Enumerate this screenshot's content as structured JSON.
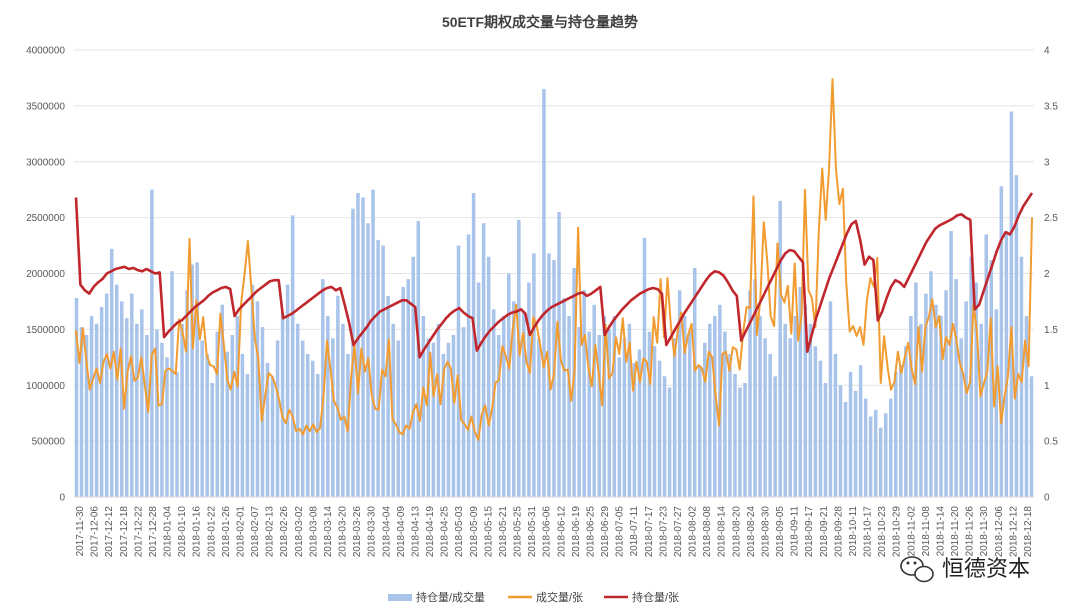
{
  "chart_data": {
    "type": "bar+line",
    "title": "50ETF期权成交量与持仓量趋势",
    "y_left": {
      "min": 0,
      "max": 4000000,
      "ticks": [
        "0",
        "500000",
        "1000000",
        "1500000",
        "2000000",
        "2500000",
        "3000000",
        "3500000",
        "4000000"
      ]
    },
    "y_right": {
      "min": 0,
      "max": 4,
      "ticks": [
        "0",
        "0.5",
        "1",
        "1.5",
        "2",
        "2.5",
        "3",
        "3.5",
        "4"
      ]
    },
    "x_range": [
      "2017-11-30",
      "2018-12-28"
    ],
    "x_tick_labels": [
      "2017-11-30",
      "2017-12-06",
      "2017-12-12",
      "2017-12-18",
      "2017-12-22",
      "2017-12-28",
      "2018-01-04",
      "2018-01-10",
      "2018-01-16",
      "2018-01-22",
      "2018-01-26",
      "2018-02-01",
      "2018-02-07",
      "2018-02-13",
      "2018-02-26",
      "2018-03-02",
      "2018-03-08",
      "2018-03-14",
      "2018-03-20",
      "2018-03-26",
      "2018-03-30",
      "2018-04-04",
      "2018-04-09",
      "2018-04-13",
      "2018-04-19",
      "2018-04-25",
      "2018-05-03",
      "2018-05-09",
      "2018-05-15",
      "2018-05-21",
      "2018-05-25",
      "2018-05-31",
      "2018-06-06",
      "2018-06-12",
      "2018-06-19",
      "2018-06-25",
      "2018-06-29",
      "2018-07-05",
      "2018-07-11",
      "2018-07-17",
      "2018-07-23",
      "2018-07-27",
      "2018-08-02",
      "2018-08-08",
      "2018-08-14",
      "2018-08-20",
      "2018-08-24",
      "2018-08-30",
      "2018-09-05",
      "2018-09-11",
      "2018-09-17",
      "2018-09-21",
      "2018-09-28",
      "2018-10-11",
      "2018-10-17",
      "2018-10-23",
      "2018-10-29",
      "2018-11-02",
      "2018-11-08",
      "2018-11-14",
      "2018-11-20",
      "2018-11-26",
      "2018-11-30",
      "2018-12-06",
      "2018-12-12",
      "2018-12-18"
    ],
    "series": [
      {
        "name": "持仓量/成交量",
        "type": "bar",
        "axis": "right",
        "color": "#a9c4eb",
        "values": [
          1.78,
          1.52,
          1.45,
          1.62,
          1.55,
          1.7,
          1.82,
          2.22,
          1.9,
          1.75,
          1.6,
          1.82,
          1.55,
          1.68,
          1.45,
          2.75,
          1.5,
          1.38,
          1.25,
          2.02,
          1.12,
          1.55,
          1.85,
          2.08,
          2.1,
          1.4,
          1.28,
          1.02,
          1.48,
          1.72,
          1.3,
          1.45,
          1.62,
          1.28,
          1.1,
          1.9,
          1.75,
          1.52,
          1.2,
          1.08,
          1.4,
          1.65,
          1.9,
          2.52,
          1.55,
          1.4,
          1.28,
          1.22,
          1.1,
          1.95,
          1.62,
          1.42,
          1.8,
          1.55,
          1.28,
          2.58,
          2.72,
          2.68,
          2.45,
          2.75,
          2.3,
          2.25,
          1.8,
          1.55,
          1.4,
          1.88,
          1.95,
          2.15,
          2.47,
          1.62,
          1.42,
          1.38,
          1.55,
          1.28,
          1.38,
          1.45,
          2.25,
          1.52,
          2.35,
          2.72,
          1.92,
          2.45,
          2.15,
          1.68,
          1.45,
          1.62,
          2.0,
          1.75,
          2.48,
          1.65,
          1.92,
          2.18,
          1.42,
          3.65,
          2.18,
          2.12,
          2.55,
          1.78,
          1.62,
          2.05,
          1.52,
          1.85,
          1.48,
          1.72,
          1.45,
          1.62,
          1.5,
          1.62,
          1.25,
          1.42,
          1.55,
          1.2,
          1.32,
          2.32,
          1.48,
          1.35,
          1.22,
          1.08,
          0.98,
          1.42,
          1.85,
          1.62,
          1.48,
          2.05,
          1.18,
          1.38,
          1.55,
          1.62,
          1.72,
          1.48,
          1.28,
          1.1,
          0.98,
          1.02,
          1.85,
          1.95,
          1.62,
          1.42,
          1.28,
          1.08,
          2.65,
          1.55,
          1.42,
          1.62,
          1.88,
          1.72,
          1.55,
          1.35,
          1.22,
          1.02,
          1.75,
          1.28,
          1.0,
          0.85,
          1.12,
          0.95,
          1.18,
          0.88,
          0.72,
          0.78,
          0.62,
          0.75,
          0.88,
          1.12,
          1.18,
          1.35,
          1.62,
          1.92,
          1.55,
          1.82,
          2.02,
          1.72,
          1.62,
          1.85,
          2.38,
          1.95,
          1.42,
          1.75,
          2.15,
          1.92,
          1.55,
          2.35,
          2.12,
          1.68,
          2.78,
          2.38,
          3.45,
          2.88,
          2.15,
          1.62,
          1.08
        ]
      },
      {
        "name": "成交量/张",
        "type": "line",
        "axis": "left",
        "color": "#f29b30",
        "values": [
          1490000,
          1200000,
          1510000,
          1220000,
          960000,
          1060000,
          1150000,
          1020000,
          1210000,
          1280000,
          1150000,
          1300000,
          1050000,
          1330000,
          790000,
          1120000,
          1260000,
          1040000,
          1070000,
          1250000,
          1000000,
          760000,
          1270000,
          1330000,
          820000,
          830000,
          1130000,
          1150000,
          1130000,
          1100000,
          1590000,
          1470000,
          1300000,
          2310000,
          1330000,
          1760000,
          1410000,
          1610000,
          1270000,
          1180000,
          1170000,
          1100000,
          1640000,
          1360000,
          1050000,
          960000,
          1120000,
          990000,
          1730000,
          1990000,
          2290000,
          1860000,
          1420000,
          1240000,
          680000,
          900000,
          1110000,
          1080000,
          1000000,
          880000,
          720000,
          660000,
          780000,
          720000,
          590000,
          610000,
          560000,
          640000,
          590000,
          650000,
          580000,
          620000,
          910000,
          1400000,
          1140000,
          860000,
          800000,
          690000,
          720000,
          590000,
          1070000,
          1360000,
          930000,
          1330000,
          1120000,
          1240000,
          910000,
          790000,
          780000,
          1140000,
          1080000,
          1410000,
          700000,
          650000,
          580000,
          560000,
          640000,
          610000,
          760000,
          830000,
          680000,
          980000,
          820000,
          1290000,
          900000,
          1100000,
          830000,
          1140000,
          1210000,
          1150000,
          840000,
          1090000,
          690000,
          650000,
          600000,
          720000,
          580000,
          510000,
          740000,
          820000,
          640000,
          790000,
          1020000,
          1050000,
          1350000,
          1260000,
          1150000,
          1500000,
          1720000,
          1270000,
          1470000,
          1210000,
          1110000,
          1610000,
          1530000,
          1360000,
          1160000,
          1300000,
          960000,
          1100000,
          1570000,
          1220000,
          1130000,
          1140000,
          860000,
          1130000,
          2410000,
          1360000,
          1450000,
          1160000,
          990000,
          1360000,
          1110000,
          820000,
          1540000,
          1060000,
          1110000,
          1430000,
          1280000,
          1600000,
          1210000,
          1380000,
          950000,
          1210000,
          1030000,
          1240000,
          1210000,
          1010000,
          1610000,
          1380000,
          1950000,
          1430000,
          1960000,
          1530000,
          1260000,
          1490000,
          1650000,
          1290000,
          1450000,
          1550000,
          1130000,
          1180000,
          1150000,
          1030000,
          1300000,
          1250000,
          910000,
          640000,
          1280000,
          1300000,
          1130000,
          1340000,
          1320000,
          1140000,
          1470000,
          1700000,
          1690000,
          2690000,
          1450000,
          1770000,
          2460000,
          2120000,
          1620000,
          1530000,
          2270000,
          1810000,
          1740000,
          1890000,
          1460000,
          2090000,
          1400000,
          1630000,
          2750000,
          1850000,
          1780000,
          1520000,
          2380000,
          2940000,
          2480000,
          2950000,
          3740000,
          2930000,
          2620000,
          2760000,
          1910000,
          1480000,
          1530000,
          1440000,
          1520000,
          1360000,
          1760000,
          1960000,
          1880000,
          2140000,
          1020000,
          1440000,
          1160000,
          960000,
          1030000,
          1300000,
          1110000,
          1250000,
          1380000,
          1150000,
          1010000,
          1520000,
          1120000,
          1520000,
          1610000,
          1770000,
          1520000,
          1620000,
          1230000,
          1430000,
          1360000,
          1550000,
          1410000,
          1200000,
          1100000,
          930000,
          1030000,
          1720000,
          1470000,
          900000,
          1020000,
          1120000,
          1600000,
          810000,
          1170000,
          660000,
          900000,
          1080000,
          1520000,
          880000,
          1100000,
          1030000,
          1400000,
          1170000,
          2500000
        ]
      },
      {
        "name": "持仓量/张",
        "type": "line",
        "axis": "right",
        "color": "#c0272d",
        "values": [
          2.68,
          1.9,
          1.85,
          1.82,
          1.88,
          1.92,
          1.95,
          2.0,
          2.02,
          2.04,
          2.05,
          2.06,
          2.04,
          2.05,
          2.03,
          2.02,
          2.04,
          2.02,
          2.0,
          2.01,
          1.43,
          1.48,
          1.52,
          1.56,
          1.58,
          1.62,
          1.66,
          1.7,
          1.73,
          1.76,
          1.8,
          1.83,
          1.85,
          1.87,
          1.88,
          1.86,
          1.62,
          1.68,
          1.72,
          1.76,
          1.8,
          1.84,
          1.87,
          1.9,
          1.93,
          1.94,
          1.94,
          1.6,
          1.62,
          1.64,
          1.67,
          1.7,
          1.73,
          1.76,
          1.79,
          1.82,
          1.85,
          1.87,
          1.88,
          1.85,
          1.87,
          1.72,
          1.56,
          1.36,
          1.42,
          1.47,
          1.52,
          1.58,
          1.62,
          1.66,
          1.68,
          1.7,
          1.72,
          1.74,
          1.76,
          1.76,
          1.73,
          1.7,
          1.25,
          1.32,
          1.38,
          1.44,
          1.5,
          1.55,
          1.6,
          1.64,
          1.67,
          1.69,
          1.65,
          1.62,
          1.6,
          1.31,
          1.38,
          1.44,
          1.49,
          1.53,
          1.57,
          1.6,
          1.63,
          1.65,
          1.66,
          1.68,
          1.64,
          1.45,
          1.52,
          1.58,
          1.63,
          1.67,
          1.7,
          1.72,
          1.74,
          1.76,
          1.78,
          1.8,
          1.82,
          1.83,
          1.8,
          1.82,
          1.85,
          1.88,
          1.45,
          1.52,
          1.58,
          1.63,
          1.68,
          1.72,
          1.76,
          1.79,
          1.82,
          1.84,
          1.86,
          1.87,
          1.86,
          1.82,
          1.36,
          1.43,
          1.5,
          1.57,
          1.64,
          1.7,
          1.76,
          1.82,
          1.88,
          1.94,
          1.99,
          2.02,
          2.01,
          1.98,
          1.92,
          1.85,
          1.8,
          1.4,
          1.48,
          1.56,
          1.64,
          1.72,
          1.8,
          1.88,
          1.96,
          2.04,
          2.12,
          2.18,
          2.21,
          2.2,
          2.15,
          2.1,
          1.3,
          1.45,
          1.6,
          1.72,
          1.84,
          1.96,
          2.06,
          2.16,
          2.26,
          2.36,
          2.44,
          2.47,
          2.3,
          2.08,
          2.15,
          2.12,
          1.58,
          1.66,
          1.78,
          1.88,
          1.94,
          1.92,
          1.88,
          1.96,
          2.04,
          2.12,
          2.2,
          2.28,
          2.34,
          2.4,
          2.43,
          2.45,
          2.47,
          2.49,
          2.52,
          2.53,
          2.5,
          2.48,
          1.68,
          1.72,
          1.84,
          1.96,
          2.08,
          2.2,
          2.3,
          2.37,
          2.35,
          2.42,
          2.52,
          2.6,
          2.66,
          2.72
        ]
      }
    ],
    "legend": "bottom-center"
  },
  "watermark": {
    "text": "恒德资本",
    "icon": "wechat-icon"
  }
}
